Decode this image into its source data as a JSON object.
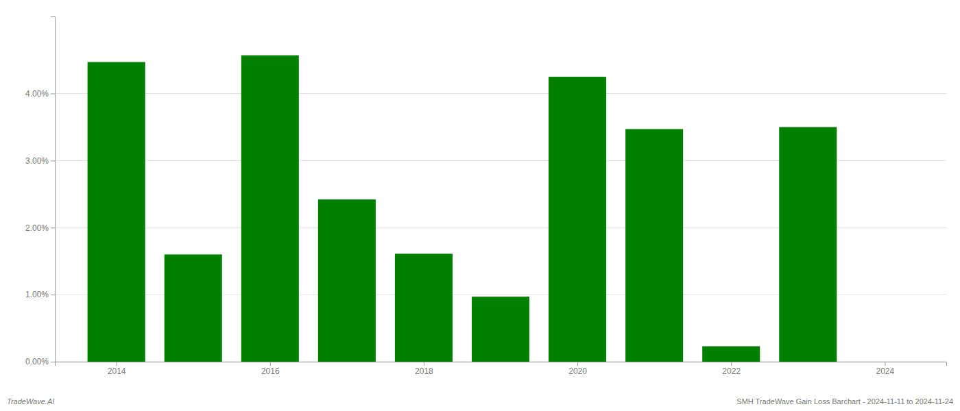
{
  "chart_data": {
    "type": "bar",
    "x": [
      2014,
      2015,
      2016,
      2017,
      2018,
      2019,
      2020,
      2021,
      2022,
      2023,
      2024
    ],
    "values": [
      0.0447,
      0.016,
      0.0457,
      0.0242,
      0.0161,
      0.0097,
      0.0425,
      0.0347,
      0.0023,
      0.035,
      0.0
    ],
    "color": "#008000",
    "xlim": [
      2013.2,
      2024.8
    ],
    "xticks": [
      2014,
      2016,
      2018,
      2020,
      2022,
      2024
    ],
    "ylim": [
      0.0,
      0.0515
    ],
    "yticks": [
      {
        "value": 0.0,
        "label": "0.00%"
      },
      {
        "value": 0.01,
        "label": "1.00%"
      },
      {
        "value": 0.02,
        "label": "2.00%"
      },
      {
        "value": 0.03,
        "label": "3.00%"
      },
      {
        "value": 0.04,
        "label": "4.00%"
      }
    ],
    "grid": true,
    "annotations": [
      "TradeWave.AI",
      "SMH TradeWave Gain Loss Barchart - 2024-11-11 to 2024-11-24"
    ]
  }
}
